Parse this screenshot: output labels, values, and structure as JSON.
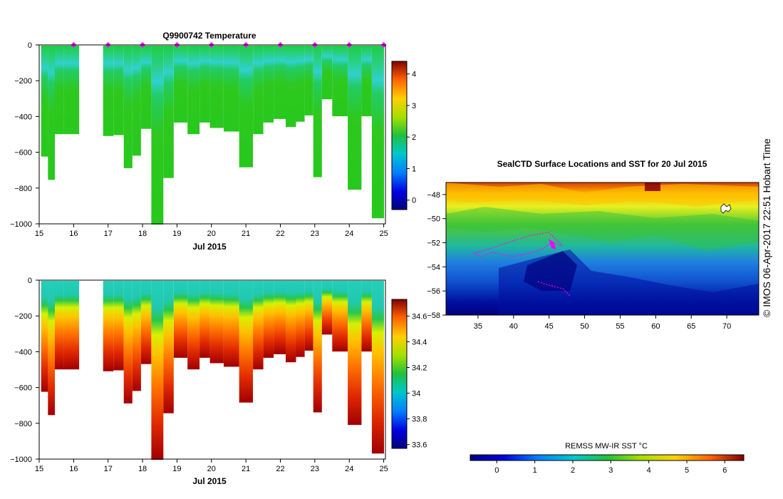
{
  "chart_data": [
    {
      "type": "heatmap",
      "title": "Q9900742  Temperature",
      "xlabel": "Jul 2015",
      "ylabel": "",
      "x_ticks": [
        "15",
        "16",
        "17",
        "18",
        "19",
        "20",
        "21",
        "22",
        "23",
        "24",
        "25"
      ],
      "y_ticks": [
        "0",
        "−200",
        "−400",
        "−600",
        "−800",
        "−1000"
      ],
      "xlim": [
        15,
        25.05
      ],
      "ylim": [
        -1000,
        0
      ],
      "colorbar": {
        "ticks": [
          "0",
          "1",
          "2",
          "3",
          "4"
        ],
        "range": [
          -0.3,
          4.4
        ]
      },
      "profiles": [
        {
          "day": 15.2,
          "depth": 620,
          "dive": 0
        },
        {
          "day": 15.4,
          "depth": 750,
          "dive": 0
        },
        {
          "day": 15.6,
          "depth": 495,
          "dive": 0
        },
        {
          "day": 15.85,
          "depth": 495,
          "dive": 1
        },
        {
          "day": 17.0,
          "depth": 505,
          "dive": 0
        },
        {
          "day": 17.3,
          "depth": 500,
          "dive": 1
        },
        {
          "day": 17.6,
          "depth": 685,
          "dive": 0
        },
        {
          "day": 17.85,
          "depth": 615,
          "dive": 0
        },
        {
          "day": 18.1,
          "depth": 465,
          "dive": 1
        },
        {
          "day": 18.4,
          "depth": 1000,
          "dive": 0
        },
        {
          "day": 18.75,
          "depth": 740,
          "dive": 0
        },
        {
          "day": 19.05,
          "depth": 430,
          "dive": 1
        },
        {
          "day": 19.45,
          "depth": 495,
          "dive": 0
        },
        {
          "day": 19.8,
          "depth": 430,
          "dive": 1
        },
        {
          "day": 20.1,
          "depth": 460,
          "dive": 0
        },
        {
          "day": 20.5,
          "depth": 480,
          "dive": 1
        },
        {
          "day": 20.95,
          "depth": 680,
          "dive": 0
        },
        {
          "day": 21.35,
          "depth": 495,
          "dive": 0
        },
        {
          "day": 21.65,
          "depth": 430,
          "dive": 1
        },
        {
          "day": 21.95,
          "depth": 410,
          "dive": 1
        },
        {
          "day": 22.3,
          "depth": 455,
          "dive": 0
        },
        {
          "day": 22.6,
          "depth": 425,
          "dive": 1
        },
        {
          "day": 22.85,
          "depth": 390,
          "dive": 1
        },
        {
          "day": 23.1,
          "depth": 735,
          "dive": 0
        },
        {
          "day": 23.35,
          "depth": 300,
          "dive": 1
        },
        {
          "day": 23.65,
          "depth": 395,
          "dive": 1
        },
        {
          "day": 24.1,
          "depth": 805,
          "dive": 0
        },
        {
          "day": 24.5,
          "depth": 395,
          "dive": 1
        },
        {
          "day": 24.8,
          "depth": 965,
          "dive": 0
        }
      ],
      "surface_markers": [
        16.0,
        17.0,
        18.0,
        19.0,
        20.0,
        21.0,
        22.0,
        23.0,
        24.0,
        25.0
      ]
    },
    {
      "type": "heatmap",
      "title": "",
      "xlabel": "Jul 2015",
      "ylabel": "",
      "x_ticks": [
        "15",
        "16",
        "17",
        "18",
        "19",
        "20",
        "21",
        "22",
        "23",
        "24",
        "25"
      ],
      "y_ticks": [
        "0",
        "−200",
        "−400",
        "−600",
        "−800",
        "−1000"
      ],
      "xlim": [
        15,
        25.05
      ],
      "ylim": [
        -1000,
        0
      ],
      "colorbar": {
        "ticks": [
          "33.6",
          "33.8",
          "34",
          "34.2",
          "34.4",
          "34.6"
        ],
        "range": [
          33.57,
          34.73
        ]
      }
    },
    {
      "type": "heatmap",
      "title": "SealCTD Surface Locations and SST for 20 Jul 2015",
      "xlabel": "",
      "ylabel": "",
      "x_ticks": [
        "35",
        "40",
        "45",
        "50",
        "55",
        "60",
        "65",
        "70"
      ],
      "y_ticks": [
        "−48",
        "−50",
        "−52",
        "−54",
        "−56",
        "−58"
      ],
      "xlim": [
        30.5,
        74.5
      ],
      "ylim": [
        -58,
        -47
      ],
      "colorbar": {
        "label": "REMSS MW-IR SST °C",
        "ticks": [
          "0",
          "1",
          "2",
          "3",
          "4",
          "5",
          "6"
        ],
        "range": [
          -0.7,
          6.5
        ]
      }
    }
  ],
  "credit": "© IMOS 06-Apr-2017 22:51 Hobart Time"
}
